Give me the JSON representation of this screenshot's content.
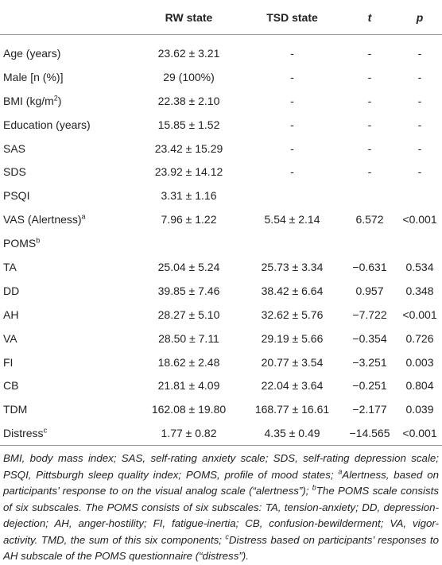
{
  "table": {
    "header": [
      "RW state",
      "TSD state",
      "t",
      "p"
    ],
    "rows": [
      {
        "label": "Age (years)",
        "values": [
          "23.62 ± 3.21",
          "-",
          "-",
          "-"
        ]
      },
      {
        "label": "Male [n (%)]",
        "values": [
          "29 (100%)",
          "-",
          "-",
          "-"
        ]
      },
      {
        "label": "BMI (kg/m",
        "label_sup": "2",
        "label_end": ")",
        "values": [
          "22.38 ± 2.10",
          "-",
          "-",
          "-"
        ]
      },
      {
        "label": "Education (years)",
        "values": [
          "15.85 ± 1.52",
          "-",
          "-",
          "-"
        ]
      },
      {
        "label": "SAS",
        "values": [
          "23.42 ± 15.29",
          "-",
          "-",
          "-"
        ]
      },
      {
        "label": "SDS",
        "values": [
          "23.92 ± 14.12",
          "-",
          "-",
          "-"
        ]
      },
      {
        "label": "PSQI",
        "values": [
          "3.31 ± 1.16"
        ]
      },
      {
        "label": "VAS (Alertness)",
        "label_sup": "a",
        "values": [
          "7.96 ± 1.22",
          "5.54 ± 2.14",
          "6.572",
          "<0.001"
        ]
      },
      {
        "label": "POMS",
        "label_sup": "b"
      },
      {
        "label": "TA",
        "values": [
          "25.04 ± 5.24",
          "25.73 ± 3.34",
          "−0.631",
          "0.534"
        ]
      },
      {
        "label": "DD",
        "values": [
          "39.85 ± 7.46",
          "38.42 ± 6.64",
          "0.957",
          "0.348"
        ]
      },
      {
        "label": "AH",
        "values": [
          "28.27 ± 5.10",
          "32.62 ± 5.76",
          "−7.722",
          "<0.001"
        ]
      },
      {
        "label": "VA",
        "values": [
          "28.50 ± 7.11",
          "29.19 ± 5.66",
          "−0.354",
          "0.726"
        ]
      },
      {
        "label": "FI",
        "values": [
          "18.62 ± 2.48",
          "20.77 ± 3.54",
          "−3.251",
          "0.003"
        ]
      },
      {
        "label": "CB",
        "values": [
          "21.81 ± 4.09",
          "22.04 ± 3.64",
          "−0.251",
          "0.804"
        ]
      },
      {
        "label": "TDM",
        "values": [
          "162.08 ± 19.80",
          "168.77 ± 16.61",
          "−2.177",
          "0.039"
        ]
      },
      {
        "label": "Distress",
        "label_sup": "c",
        "values": [
          "1.77 ± 0.82",
          "4.35 ± 0.49",
          "−14.565",
          "<0.001"
        ]
      }
    ]
  },
  "footnote": [
    {
      "text": "BMI, body mass index; SAS, self-rating anxiety scale; SDS, self-rating depression scale; PSQI, Pittsburgh sleep quality index; POMS, profile of mood states; "
    },
    {
      "sup": "a"
    },
    {
      "text": "Alertness, based on participants’ response to on the visual analog scale (“alertness”); "
    },
    {
      "sup": "b"
    },
    {
      "text": "The POMS scale consists of six subscales. The POMS consists of six subscales: TA, tension-anxiety; DD, depression-dejection; AH, anger-hostility; FI, fatigue-inertia; CB, confusion-bewilderment; VA, vigor-activity. TMD, the sum of this six components; "
    },
    {
      "sup": "c"
    },
    {
      "text": "Distress based on participants’ responses to AH subscale of the POMS questionnaire (“distress”)."
    }
  ]
}
